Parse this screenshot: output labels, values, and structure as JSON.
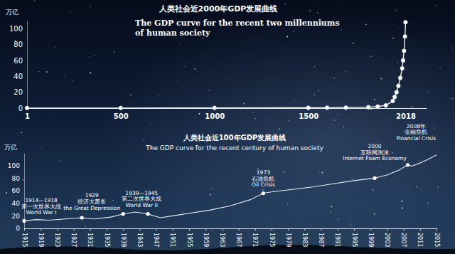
{
  "chart_data": [
    {
      "type": "line",
      "title": "人类社会近2000年GDP发展曲线",
      "subtitle": "The GDP curve for the recent two millenniums of human society",
      "ylabel": "万亿",
      "x": [
        1,
        500,
        1000,
        1500,
        1600,
        1700,
        1820,
        1870,
        1913,
        1950,
        1960,
        1970,
        1980,
        1990,
        2000,
        2005,
        2010,
        2015,
        2018
      ],
      "values": [
        0.2,
        0.2,
        0.3,
        0.5,
        0.6,
        0.7,
        1.2,
        2,
        3.5,
        9,
        14,
        20,
        28,
        38,
        50,
        60,
        72,
        90,
        108
      ],
      "color": "#ffffff",
      "marker": "circle",
      "line_style": "solid",
      "xlim": [
        1,
        2130
      ],
      "xticks": [
        1,
        500,
        1000,
        1500,
        2018
      ],
      "ylim": [
        0,
        110
      ],
      "yticks": [
        0,
        20,
        40,
        60,
        80,
        100
      ],
      "grid": false
    },
    {
      "type": "line",
      "title": "人类社会近100年GDP发展曲线",
      "subtitle": "The GDP curve for the recent century of human society",
      "ylabel": "万亿",
      "x": [
        1915,
        1918,
        1921,
        1925,
        1929,
        1932,
        1936,
        1939,
        1942,
        1945,
        1948,
        1951,
        1955,
        1960,
        1965,
        1970,
        1973,
        1975,
        1980,
        1985,
        1990,
        1995,
        2000,
        2003,
        2006,
        2008,
        2009,
        2011,
        2013,
        2015
      ],
      "values": [
        12,
        14,
        13,
        15,
        17,
        15,
        18,
        23,
        26,
        23,
        17,
        20,
        24,
        29,
        36,
        46,
        56,
        58,
        62,
        66,
        71,
        76,
        80,
        85,
        93,
        101,
        99,
        104,
        110,
        117
      ],
      "color": "#e6edf5",
      "marker": "none",
      "line_style": "solid",
      "xlim": [
        1915,
        2015
      ],
      "xticks": [
        1915,
        1919,
        1923,
        1927,
        1931,
        1935,
        1939,
        1943,
        1947,
        1951,
        1955,
        1959,
        1963,
        1967,
        1971,
        1975,
        1979,
        1983,
        1987,
        1991,
        1995,
        1999,
        2003,
        2007,
        2011,
        2015
      ],
      "ylim": [
        0,
        120
      ],
      "yticks": [
        0,
        20,
        40,
        60,
        80,
        100
      ],
      "grid": false,
      "annotations": [
        {
          "x": 1915,
          "y": 12,
          "text": [
            "1914—1918",
            "第一次世界大战",
            "World War I"
          ]
        },
        {
          "x": 1929,
          "y": 17,
          "text": [
            "1929",
            "经济大萧条",
            "the Great Depression"
          ]
        },
        {
          "x": 1939,
          "y": 23,
          "text": [
            "1939—1945",
            "第二次世界大战",
            "World War II"
          ]
        },
        {
          "x": 1945,
          "y": 23,
          "text": []
        },
        {
          "x": 1973,
          "y": 56,
          "text": [
            "1973",
            "石油危机",
            "Oil Crisis"
          ]
        },
        {
          "x": 2000,
          "y": 80,
          "text": [
            "2000",
            "互联网泡沫",
            "Internet Foam Economy"
          ]
        },
        {
          "x": 2008,
          "y": 101,
          "text": [
            "2008年",
            "金融危机",
            "Financial Crisis"
          ]
        }
      ]
    }
  ]
}
